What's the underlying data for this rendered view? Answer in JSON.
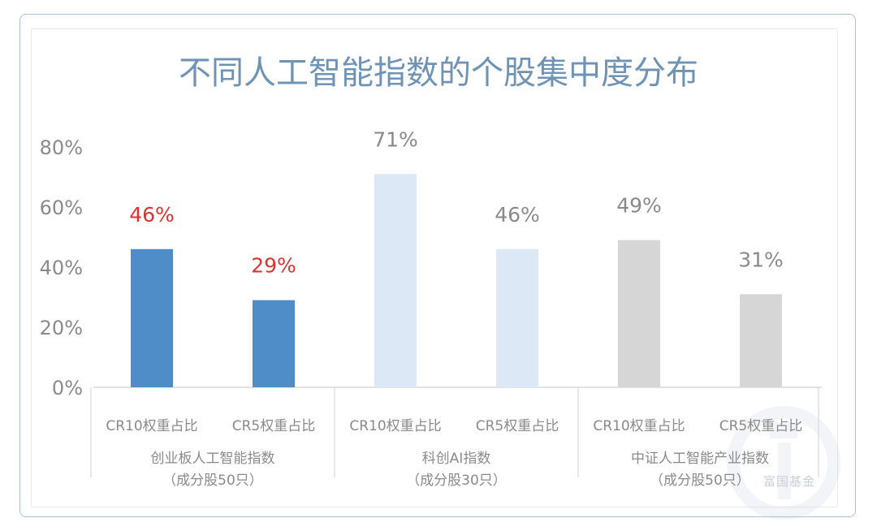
{
  "chart_data": {
    "type": "bar",
    "title": "不同人工智能指数的个股集中度分布",
    "ylim": [
      0,
      80
    ],
    "y_ticks": [
      "0%",
      "20%",
      "40%",
      "60%",
      "80%"
    ],
    "grid": false,
    "legend": "none",
    "groups": [
      {
        "name_line1": "创业板人工智能指数",
        "name_line2": "（成分股50只）",
        "bars": [
          {
            "category": "CR10权重占比",
            "value": 46,
            "label": "46%",
            "color": "#4f8dc9",
            "label_color": "#e03131"
          },
          {
            "category": "CR5权重占比",
            "value": 29,
            "label": "29%",
            "color": "#4f8dc9",
            "label_color": "#e03131"
          }
        ]
      },
      {
        "name_line1": "科创AI指数",
        "name_line2": "（成分股30只）",
        "bars": [
          {
            "category": "CR10权重占比",
            "value": 71,
            "label": "71%",
            "color": "#dce8f5",
            "label_color": "#8a8a8a"
          },
          {
            "category": "CR5权重占比",
            "value": 46,
            "label": "46%",
            "color": "#dce8f5",
            "label_color": "#8a8a8a"
          }
        ]
      },
      {
        "name_line1": "中证人工智能产业指数",
        "name_line2": "（成分股50只）",
        "bars": [
          {
            "category": "CR10权重占比",
            "value": 49,
            "label": "49%",
            "color": "#d6d6d6",
            "label_color": "#8a8a8a"
          },
          {
            "category": "CR5权重占比",
            "value": 31,
            "label": "31%",
            "color": "#d6d6d6",
            "label_color": "#8a8a8a"
          }
        ]
      }
    ]
  },
  "watermark_text": "富国基金",
  "colors": {
    "title": "#6f93b5",
    "axis_text": "#8a8a8a"
  }
}
